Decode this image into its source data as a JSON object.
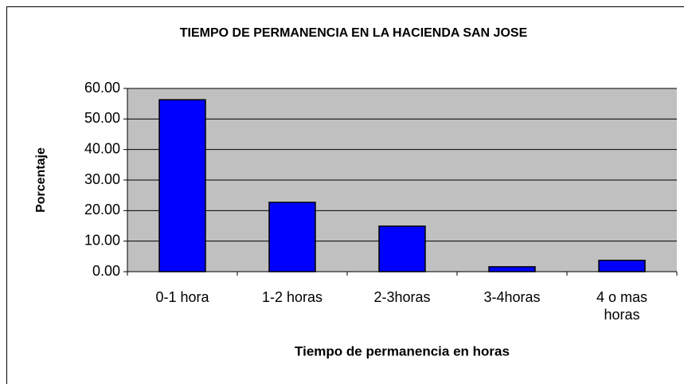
{
  "chart_data": {
    "type": "bar",
    "title": "TIEMPO DE PERMANENCIA EN LA HACIENDA SAN JOSE",
    "x_label": "Tiempo de permanencia en horas",
    "y_label": "Porcentaje",
    "categories": [
      "0-1 hora",
      "1-2 horas",
      "2-3horas",
      "3-4horas",
      "4 o mas horas"
    ],
    "values": [
      56.3,
      22.7,
      14.9,
      1.6,
      3.7
    ],
    "color": "#0000ff",
    "ylim": [
      0,
      60
    ],
    "yticks": [
      {
        "value": 0,
        "label": "0.00"
      },
      {
        "value": 10,
        "label": "10.00"
      },
      {
        "value": 20,
        "label": "20.00"
      },
      {
        "value": 30,
        "label": "30.00"
      },
      {
        "value": 40,
        "label": "40.00"
      },
      {
        "value": 50,
        "label": "50.00"
      },
      {
        "value": 60,
        "label": "60.00"
      }
    ],
    "grid": true
  }
}
